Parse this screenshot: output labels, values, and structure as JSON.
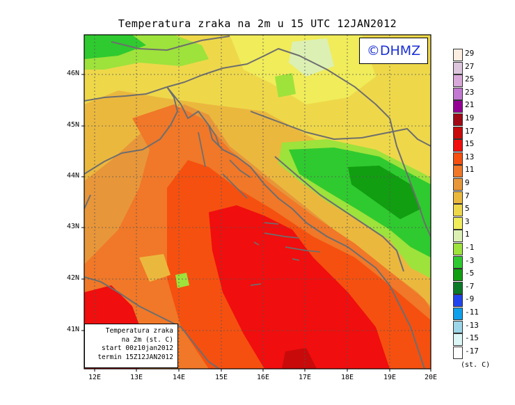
{
  "title": "Temperatura zraka na 2m u 15 UTC 12JAN2012",
  "logo": "©DHMZ",
  "info": {
    "line1": "Temperatura zraka",
    "line2": "na 2m (st. C)",
    "line3": "start 00z10jan2012",
    "line4": "termin 15Z12JAN2012"
  },
  "units": "(st. C)",
  "lat_labels": [
    "46N",
    "45N",
    "44N",
    "43N",
    "42N",
    "41N"
  ],
  "lon_labels": [
    "12E",
    "13E",
    "14E",
    "15E",
    "16E",
    "17E",
    "18E",
    "19E",
    "20E"
  ],
  "legend": [
    {
      "label": "29",
      "color": "#fcefe2"
    },
    {
      "label": "27",
      "color": "#dcc6dc"
    },
    {
      "label": "25",
      "color": "#d8a8d8"
    },
    {
      "label": "23",
      "color": "#c278d0"
    },
    {
      "label": "21",
      "color": "#940094"
    },
    {
      "label": "19",
      "color": "#a00a14"
    },
    {
      "label": "17",
      "color": "#c80a0a"
    },
    {
      "label": "15",
      "color": "#f00e0e"
    },
    {
      "label": "13",
      "color": "#f55010"
    },
    {
      "label": "11",
      "color": "#f07828"
    },
    {
      "label": "9",
      "color": "#e8963a"
    },
    {
      "label": "7",
      "color": "#ebb83e"
    },
    {
      "label": "5",
      "color": "#eed84a"
    },
    {
      "label": "3",
      "color": "#f0ec5a"
    },
    {
      "label": "1",
      "color": "#dcf0b4"
    },
    {
      "label": "-1",
      "color": "#9ee23c"
    },
    {
      "label": "-3",
      "color": "#2fca2f"
    },
    {
      "label": "-5",
      "color": "#119e11"
    },
    {
      "label": "-7",
      "color": "#0a7a28"
    },
    {
      "label": "-9",
      "color": "#2244ee"
    },
    {
      "label": "-11",
      "color": "#0ea0ea"
    },
    {
      "label": "-13",
      "color": "#9cd6e8"
    },
    {
      "label": "-15",
      "color": "#dcf6f6"
    },
    {
      "label": "-17",
      "color": "#ffffff"
    }
  ]
}
